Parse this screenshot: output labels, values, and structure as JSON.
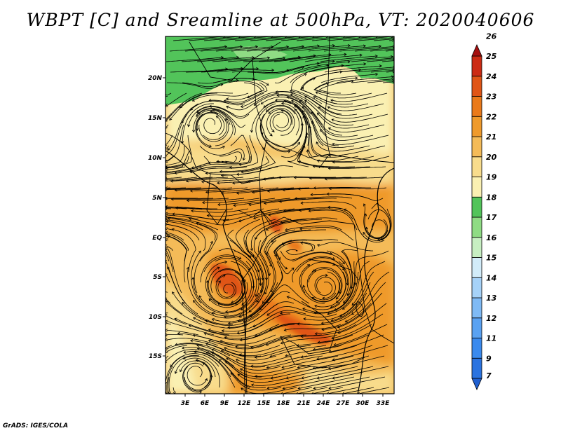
{
  "title": "WBPT [C] and Sreamline at 500hPa, VT: 2020040606",
  "footer": "GrADS: IGES/COLA",
  "map": {
    "lat_labels": [
      "20N",
      "15N",
      "10N",
      "5N",
      "EQ",
      "5S",
      "10S",
      "15S"
    ],
    "lon_labels": [
      "3E",
      "6E",
      "9E",
      "12E",
      "15E",
      "18E",
      "21E",
      "24E",
      "27E",
      "30E",
      "33E"
    ]
  },
  "colorbar": {
    "labels": [
      "7",
      "9",
      "11",
      "12",
      "13",
      "14",
      "15",
      "16",
      "17",
      "18",
      "19",
      "20",
      "21",
      "22",
      "23",
      "24",
      "25",
      "26"
    ],
    "colors": [
      "#1f5fd0",
      "#2a73e0",
      "#3a8aee",
      "#5aa2f2",
      "#7fbaf5",
      "#a6d2f8",
      "#d2ecf9",
      "#c7efc2",
      "#8fdc84",
      "#52c45a",
      "#faf0b2",
      "#f8dc8c",
      "#f4bb58",
      "#ef9a2b",
      "#ea7a1a",
      "#e05516",
      "#cc2b14",
      "#a50f0f"
    ]
  }
}
